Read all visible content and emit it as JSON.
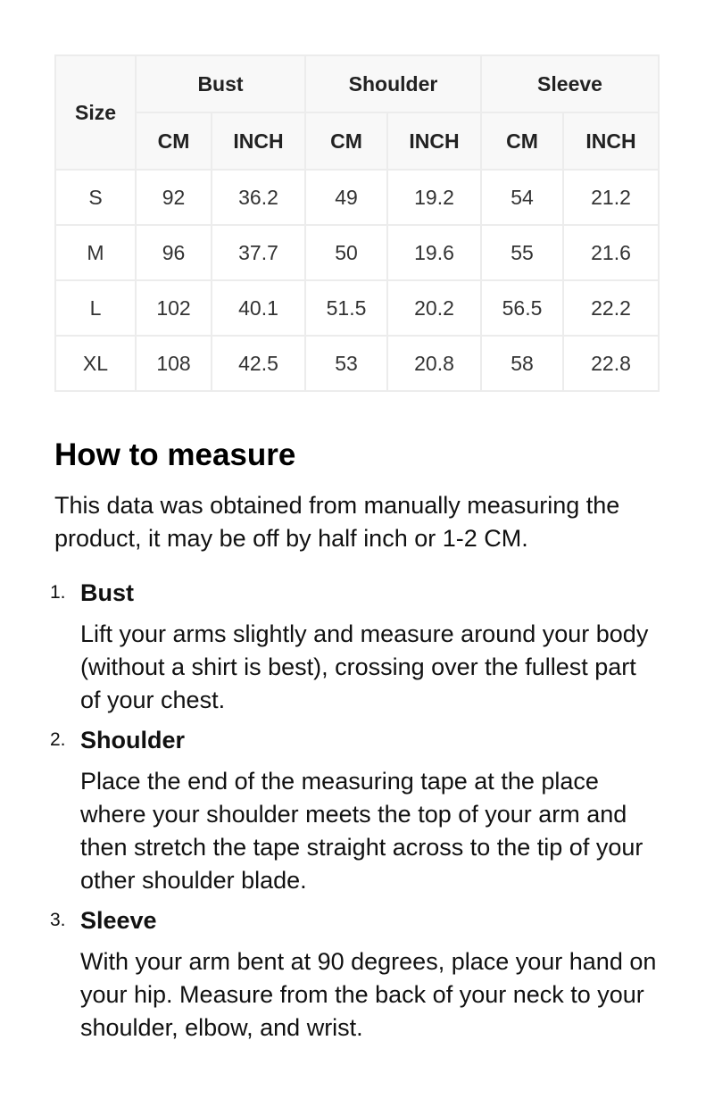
{
  "table": {
    "size_label": "Size",
    "groups": [
      "Bust",
      "Shoulder",
      "Sleeve"
    ],
    "units": [
      "CM",
      "INCH"
    ],
    "rows": [
      [
        "S",
        "92",
        "36.2",
        "49",
        "19.2",
        "54",
        "21.2"
      ],
      [
        "M",
        "96",
        "37.7",
        "50",
        "19.6",
        "55",
        "21.6"
      ],
      [
        "L",
        "102",
        "40.1",
        "51.5",
        "20.2",
        "56.5",
        "22.2"
      ],
      [
        "XL",
        "108",
        "42.5",
        "53",
        "20.8",
        "58",
        "22.8"
      ]
    ]
  },
  "guide": {
    "title": "How to measure",
    "intro": "This data was obtained from manually measuring the product, it may be off by half inch or 1-2 CM.",
    "steps": [
      {
        "num": "1.",
        "title": "Bust",
        "text": "Lift your arms slightly and measure around your body (without a shirt is best), crossing over the fullest part of your chest."
      },
      {
        "num": "2.",
        "title": "Shoulder",
        "text": "Place the end of the measuring tape at the place where your shoulder meets the top of your arm and then stretch the tape straight across to the tip of your other shoulder blade."
      },
      {
        "num": "3.",
        "title": "Sleeve",
        "text": "With your arm bent at 90 degrees, place your hand on your hip. Measure from the back of your neck to your shoulder, elbow, and wrist."
      }
    ]
  }
}
